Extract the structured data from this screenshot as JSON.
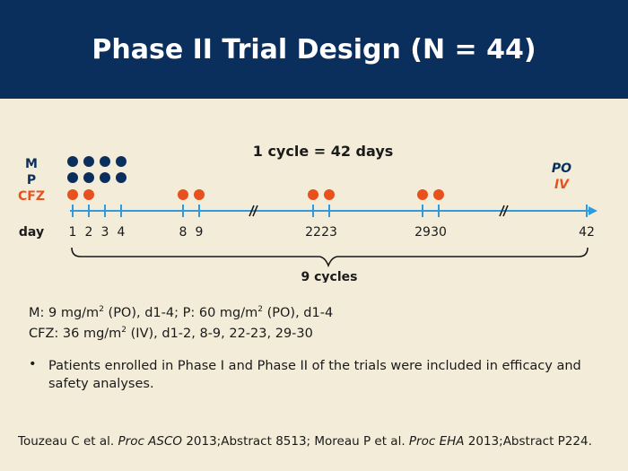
{
  "header": {
    "title": "Phase II Trial Design (N = 44)"
  },
  "diagram": {
    "cycle_label": "1 cycle = 42 days",
    "cycles_label": "9 cycles",
    "row_labels": {
      "m": "M",
      "p": "P",
      "cfz": "CFZ",
      "day": "day"
    },
    "route_labels": {
      "po": "PO",
      "iv": "IV"
    },
    "day_ticks": [
      "1",
      "2",
      "3",
      "4",
      "8",
      "9",
      "22",
      "23",
      "29",
      "30",
      "42"
    ],
    "m_days": [
      1,
      2,
      3,
      4
    ],
    "p_days": [
      1,
      2,
      3,
      4
    ],
    "cfz_days": [
      1,
      2,
      8,
      9,
      22,
      23,
      29,
      30
    ],
    "colors": {
      "navy": "#0b2f5c",
      "orange": "#e8501e",
      "axis": "#2e9be0"
    }
  },
  "dosing": {
    "line1": {
      "m": "M: 9 mg/m",
      "m_sup": "2",
      "m_rest": " (PO), d1-4; P: 60 mg/m",
      "p_sup": "2",
      "p_rest": " (PO), d1-4"
    },
    "line2": {
      "pre": "CFZ: 36 mg/m",
      "sup": "2",
      "rest": " (IV), d1-2, 8-9, 22-23, 29-30"
    }
  },
  "note": {
    "bullet": "•",
    "text": "Patients enrolled in Phase I and Phase II of the trials were included in efficacy and safety analyses."
  },
  "reference": {
    "p1": "Touzeau C et al. ",
    "j1": "Proc ASCO",
    "p2": " 2013;Abstract 8513; Moreau P et al. ",
    "j2": "Proc EHA",
    "p3": " 2013;Abstract P224."
  }
}
